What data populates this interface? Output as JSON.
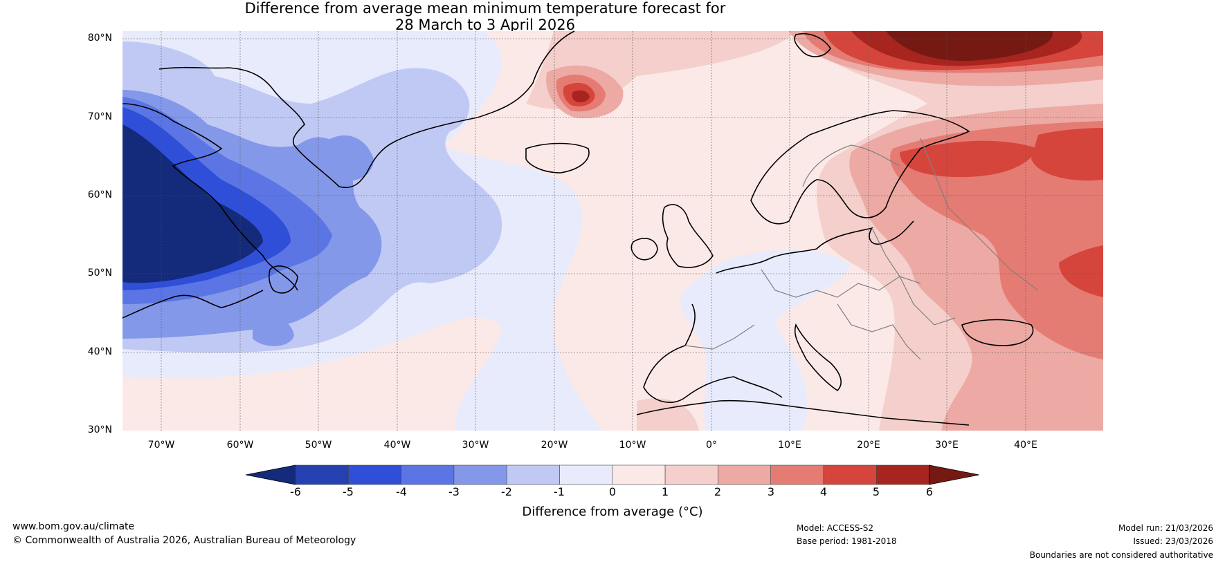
{
  "title": {
    "line1": "Difference from average mean minimum temperature forecast for",
    "line2": "28 March to 3 April 2026"
  },
  "lat_labels": [
    "80°N",
    "70°N",
    "60°N",
    "50°N",
    "40°N",
    "30°N"
  ],
  "lon_labels": [
    "70°W",
    "60°W",
    "50°W",
    "40°W",
    "30°W",
    "20°W",
    "10°W",
    "0°",
    "10°E",
    "20°E",
    "30°E",
    "40°E"
  ],
  "colorbar": {
    "label": "Difference from average (°C)",
    "ticks": [
      "-6",
      "-5",
      "-4",
      "-3",
      "-2",
      "-1",
      "0",
      "1",
      "2",
      "3",
      "4",
      "5",
      "6"
    ],
    "colors": [
      "#142a7a",
      "#2540b0",
      "#2f4fd9",
      "#5b75e4",
      "#8498ea",
      "#c0c9f4",
      "#e8ebfb",
      "#fbe9e7",
      "#f4cfcb",
      "#eda9a3",
      "#e47c74",
      "#d6453c",
      "#a8251f",
      "#761913"
    ]
  },
  "footer": {
    "website": "www.bom.gov.au/climate",
    "copyright": "© Commonwealth of Australia 2026, Australian Bureau of Meteorology",
    "model": "Model: ACCESS-S2",
    "base_period": "Base period: 1981-2018",
    "model_run": "Model run: 21/03/2026",
    "issued": "Issued: 23/03/2026",
    "disclaimer": "Boundaries are not considered authoritative"
  },
  "map": {
    "land_outline_color": "#000000",
    "border_color": "#808080",
    "gridline_color": "#555555"
  }
}
